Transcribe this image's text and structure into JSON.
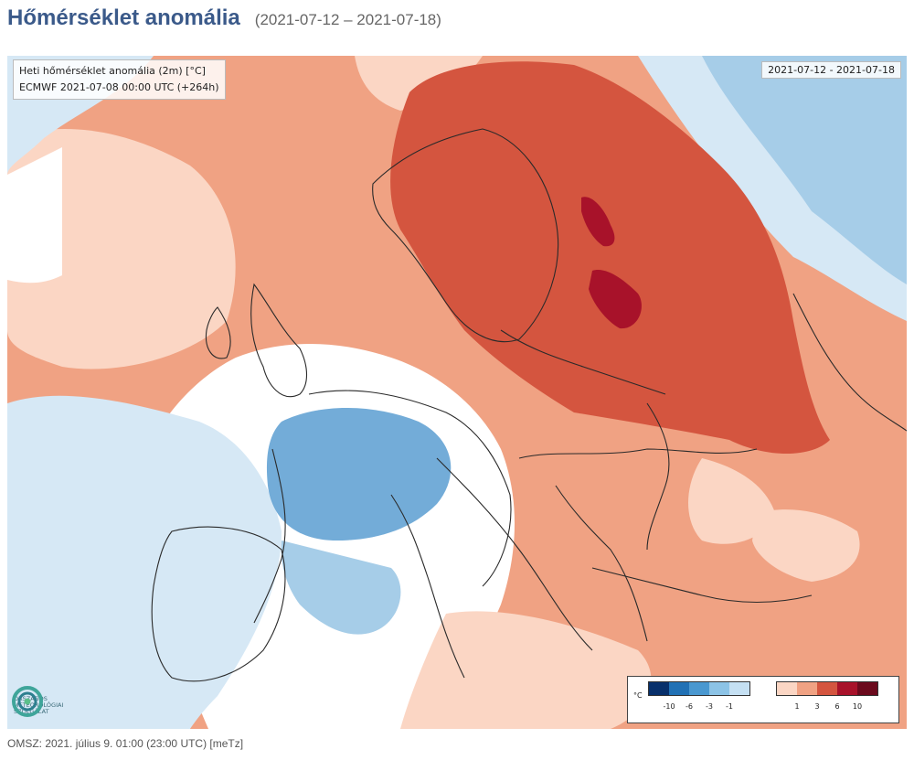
{
  "header": {
    "title": "Hőmérséklet anomália",
    "range": "(2021-07-12 – 2021-07-18)"
  },
  "map": {
    "info_line1": "Heti hőmérséklet anomália (2m) [°C]",
    "info_line2": "ECMWF 2021-07-08 00:00 UTC (+264h)",
    "date_range": "2021-07-12 - 2021-07-18",
    "colors": {
      "heavy_red": "#a8122a",
      "red": "#d4553f",
      "light_red": "#f0a283",
      "pale_red": "#fbd6c4",
      "neutral": "#ffffff",
      "pale_blue": "#d6e8f5",
      "light_blue": "#a6cde8",
      "blue": "#5a9ed1",
      "border": "#2a2a2a"
    }
  },
  "logo": {
    "line1": "Országos",
    "line2": "Meteorológiai",
    "line3": "Szolgálat"
  },
  "legend": {
    "unit": "°C",
    "cold_ticks": [
      "-10",
      "-6",
      "-3",
      "-1"
    ],
    "warm_ticks": [
      "1",
      "3",
      "6",
      "10"
    ],
    "cold_colors": [
      "#08306b",
      "#2171b5",
      "#4a98d0",
      "#8cc3e6",
      "#c5e0f3"
    ],
    "warm_colors": [
      "#fbd6c4",
      "#f0a283",
      "#d4553f",
      "#a8122a",
      "#6b0a1d"
    ]
  },
  "footer": {
    "text": "OMSZ: 2021. július 9. 01:00 (23:00  UTC)  [meTz]"
  }
}
